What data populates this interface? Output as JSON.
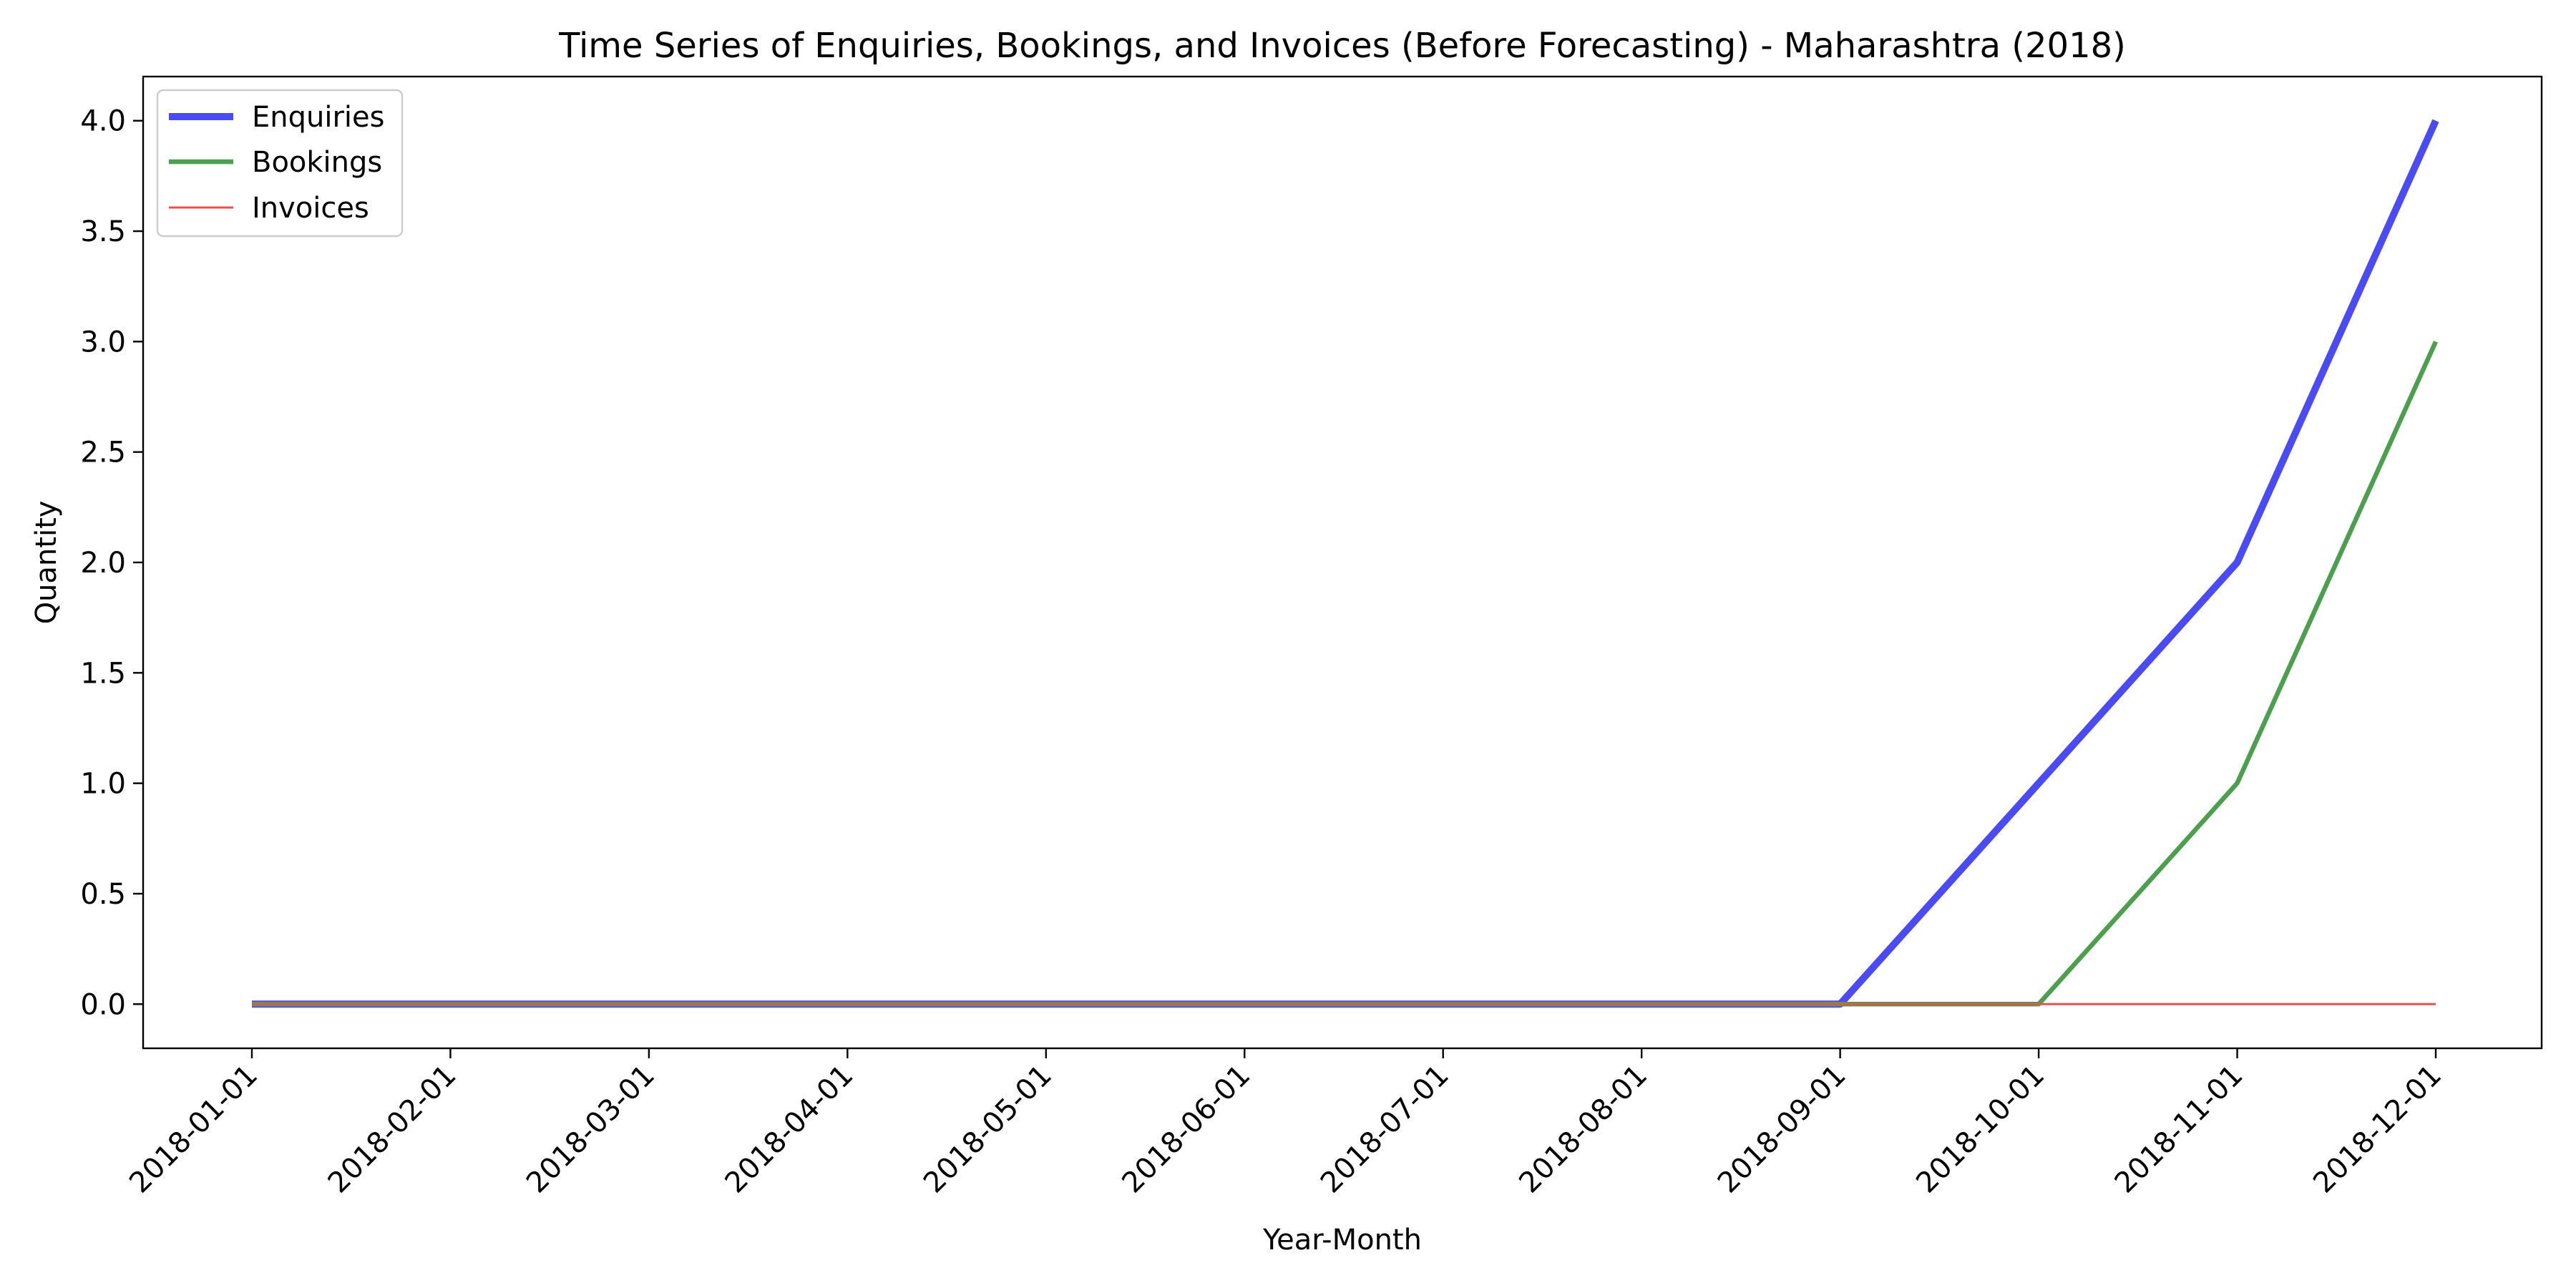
{
  "chart_data": {
    "type": "line",
    "title": "Time Series of Enquiries, Bookings, and Invoices (Before Forecasting) - Maharashtra (2018)",
    "xlabel": "Year-Month",
    "ylabel": "Quantity",
    "x": [
      "2018-01-01",
      "2018-02-01",
      "2018-03-01",
      "2018-04-01",
      "2018-05-01",
      "2018-06-01",
      "2018-07-01",
      "2018-08-01",
      "2018-09-01",
      "2018-10-01",
      "2018-11-01",
      "2018-12-01"
    ],
    "ylim": [
      -0.2,
      4.2
    ],
    "yticks": [
      "0.0",
      "0.5",
      "1.0",
      "1.5",
      "2.0",
      "2.5",
      "3.0",
      "3.5",
      "4.0"
    ],
    "grid": false,
    "legend_position": "top-left",
    "series": [
      {
        "name": "Enquiries",
        "color": "#4b4bf5",
        "values": [
          0,
          0,
          0,
          0,
          0,
          0,
          0,
          0,
          0,
          1,
          2,
          4
        ]
      },
      {
        "name": "Bookings",
        "color": "#4c9f4c",
        "values": [
          0,
          0,
          0,
          0,
          0,
          0,
          0,
          0,
          0,
          0,
          1,
          3
        ]
      },
      {
        "name": "Invoices",
        "color": "#e8514f",
        "values": [
          0,
          0,
          0,
          0,
          0,
          0,
          0,
          0,
          0,
          0,
          0,
          0
        ]
      }
    ]
  }
}
